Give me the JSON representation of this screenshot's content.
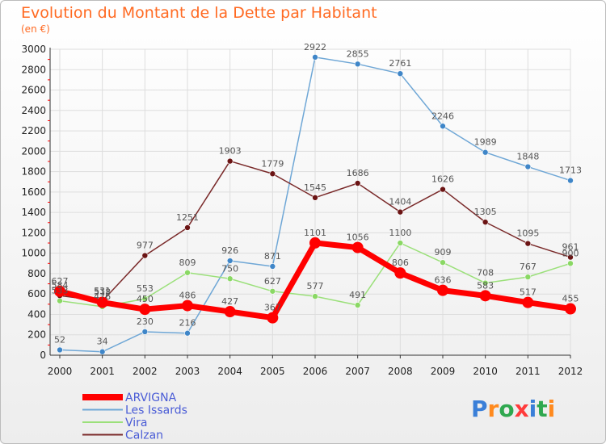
{
  "chart_data": {
    "type": "line",
    "title": "Evolution du Montant de la Dette par Habitant",
    "subtitle": "(en €)",
    "x": [
      "2000",
      "2001",
      "2002",
      "2003",
      "2004",
      "2005",
      "2006",
      "2007",
      "2008",
      "2009",
      "2010",
      "2011",
      "2012"
    ],
    "ylim": [
      0,
      3000
    ],
    "yticks": [
      0,
      200,
      400,
      600,
      800,
      1000,
      1200,
      1400,
      1600,
      1800,
      2000,
      2200,
      2400,
      2600,
      2800,
      3000
    ],
    "grid": true,
    "legend_position": "bottom-left",
    "series": [
      {
        "name": "Les Issards",
        "color": "#6fa7d6",
        "marker": "#3f86c8",
        "values": [
          52,
          34,
          230,
          216,
          926,
          871,
          2922,
          2855,
          2761,
          2246,
          1989,
          1848,
          1713
        ]
      },
      {
        "name": "Vira",
        "color": "#9be07a",
        "marker": "#8ad864",
        "values": [
          533,
          476,
          553,
          809,
          750,
          627,
          577,
          491,
          1100,
          909,
          708,
          767,
          900
        ]
      },
      {
        "name": "Calzan",
        "color": "#7a2a2a",
        "marker": "#6b1414",
        "values": [
          584,
          531,
          977,
          1251,
          1903,
          1779,
          1545,
          1686,
          1404,
          1626,
          1305,
          1095,
          961
        ]
      },
      {
        "name": "ARVIGNA",
        "color": "#ff0000",
        "marker": "#ff0000",
        "values": [
          627,
          518,
          450,
          486,
          427,
          367,
          1101,
          1056,
          806,
          636,
          583,
          517,
          455
        ]
      }
    ],
    "legend_order": [
      "ARVIGNA",
      "Les Issards",
      "Vira",
      "Calzan"
    ]
  },
  "brand": {
    "logo_text": "Proxiti"
  }
}
